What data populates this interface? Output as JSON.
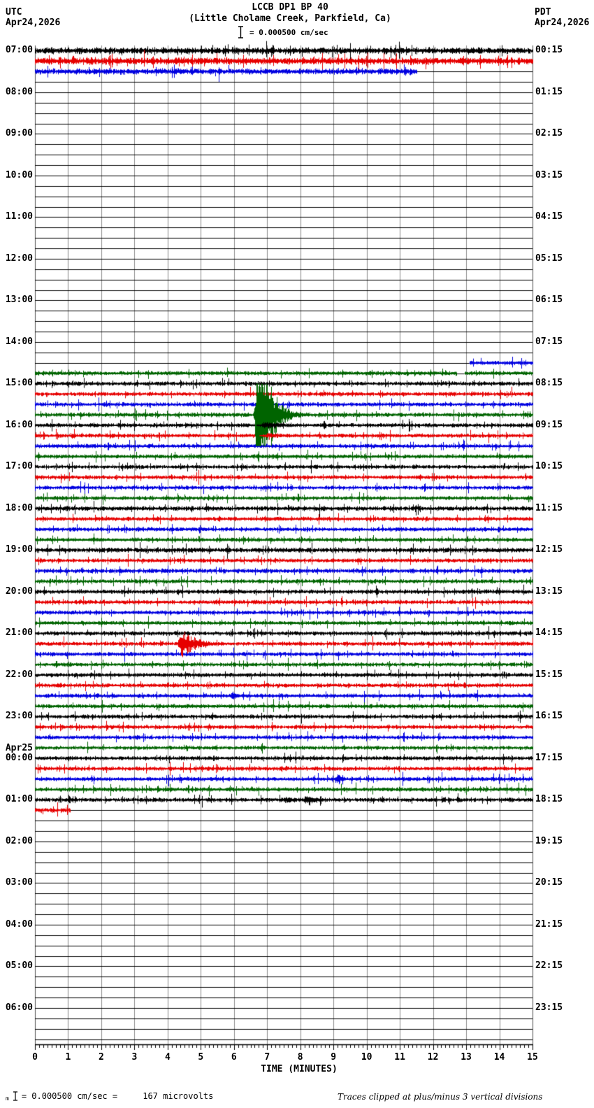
{
  "header": {
    "title": "LCCB DP1 BP 40",
    "subtitle": "(Little Cholame Creek, Parkfield, Ca)",
    "scale_text": "= 0.000500 cm/sec"
  },
  "corner_left": {
    "tz": "UTC",
    "date": "Apr24,2026"
  },
  "corner_right": {
    "tz": "PDT",
    "date": "Apr24,2026"
  },
  "x_axis": {
    "title": "TIME (MINUTES)",
    "tick_labels": [
      "0",
      "1",
      "2",
      "3",
      "4",
      "5",
      "6",
      "7",
      "8",
      "9",
      "10",
      "11",
      "12",
      "13",
      "14",
      "15"
    ]
  },
  "footer": {
    "prefix": "m",
    "scale_equiv": "= 0.000500 cm/sec =     167 microvolts",
    "clip_note": "Traces clipped at plus/minus 3 vertical divisions"
  },
  "colors": {
    "black": "#000000",
    "red": "#e60000",
    "blue": "#0000e0",
    "green": "#006400",
    "grid": "#8a8a8a",
    "edge": "#555555"
  },
  "chart_data": {
    "type": "seismogram-helicorder",
    "station": "LCCB DP1 BP 40",
    "location": "Little Cholame Creek, Parkfield, Ca",
    "timezone_left": "UTC",
    "timezone_right": "PDT",
    "date_start": "Apr24,2026",
    "minutes_per_line": 15,
    "lines_per_hour": 4,
    "trace_color_cycle": [
      "black",
      "red",
      "blue",
      "green"
    ],
    "scale_cm_per_sec": 0.0005,
    "microvolts_equiv": 167,
    "clip_divisions": 3,
    "rows": [
      {
        "utc": "07:00",
        "pdt": "00:15",
        "segs": [
          {
            "c": "black",
            "a": [
              [
                0,
                15
              ]
            ],
            "amp": 4.0
          },
          {
            "c": "red",
            "a": [
              [
                0,
                15
              ]
            ],
            "amp": 4.4
          },
          {
            "c": "blue",
            "a": [
              [
                0,
                11.5
              ]
            ],
            "amp": 3.6
          },
          {
            "c": "green",
            "a": []
          }
        ]
      },
      {
        "utc": "08:00",
        "pdt": "01:15",
        "segs": [
          {
            "c": "black",
            "a": []
          },
          {
            "c": "red",
            "a": []
          },
          {
            "c": "blue",
            "a": []
          },
          {
            "c": "green",
            "a": []
          }
        ]
      },
      {
        "utc": "09:00",
        "pdt": "02:15",
        "segs": [
          {
            "c": "black",
            "a": []
          },
          {
            "c": "red",
            "a": []
          },
          {
            "c": "blue",
            "a": []
          },
          {
            "c": "green",
            "a": []
          }
        ]
      },
      {
        "utc": "10:00",
        "pdt": "03:15",
        "segs": [
          {
            "c": "black",
            "a": []
          },
          {
            "c": "red",
            "a": []
          },
          {
            "c": "blue",
            "a": []
          },
          {
            "c": "green",
            "a": []
          }
        ]
      },
      {
        "utc": "11:00",
        "pdt": "04:15",
        "segs": [
          {
            "c": "black",
            "a": []
          },
          {
            "c": "red",
            "a": []
          },
          {
            "c": "blue",
            "a": []
          },
          {
            "c": "green",
            "a": []
          }
        ]
      },
      {
        "utc": "12:00",
        "pdt": "05:15",
        "segs": [
          {
            "c": "black",
            "a": []
          },
          {
            "c": "red",
            "a": []
          },
          {
            "c": "blue",
            "a": []
          },
          {
            "c": "green",
            "a": []
          }
        ]
      },
      {
        "utc": "13:00",
        "pdt": "06:15",
        "segs": [
          {
            "c": "black",
            "a": []
          },
          {
            "c": "red",
            "a": []
          },
          {
            "c": "blue",
            "a": []
          },
          {
            "c": "green",
            "a": []
          }
        ]
      },
      {
        "utc": "14:00",
        "pdt": "07:15",
        "segs": [
          {
            "c": "black",
            "a": []
          },
          {
            "c": "red",
            "a": []
          },
          {
            "c": "blue",
            "a": [
              [
                13.1,
                15
              ]
            ],
            "amp": 2.6
          },
          {
            "c": "green",
            "a": [
              [
                0,
                12.7
              ],
              [
                12.95,
                15
              ]
            ],
            "amp": 2.6
          }
        ]
      },
      {
        "utc": "15:00",
        "pdt": "08:15",
        "segs": [
          {
            "c": "black",
            "a": [
              [
                0,
                15
              ]
            ],
            "amp": 2.6
          },
          {
            "c": "red",
            "a": [
              [
                0,
                15
              ]
            ],
            "amp": 2.5
          },
          {
            "c": "blue",
            "a": [
              [
                0,
                15
              ]
            ],
            "amp": 2.5
          },
          {
            "c": "green",
            "a": [
              [
                0,
                15
              ]
            ],
            "amp": 2.6
          }
        ]
      },
      {
        "utc": "16:00",
        "pdt": "09:15",
        "segs": [
          {
            "c": "black",
            "a": [
              [
                0,
                15
              ]
            ],
            "amp": 2.5
          },
          {
            "c": "red",
            "a": [
              [
                0,
                15
              ]
            ],
            "amp": 2.5
          },
          {
            "c": "blue",
            "a": [
              [
                0,
                15
              ]
            ],
            "amp": 2.5
          },
          {
            "c": "green",
            "a": [
              [
                0,
                15
              ]
            ],
            "amp": 2.4
          }
        ]
      },
      {
        "utc": "17:00",
        "pdt": "10:15",
        "segs": [
          {
            "c": "black",
            "a": [
              [
                0,
                15
              ]
            ],
            "amp": 2.4
          },
          {
            "c": "red",
            "a": [
              [
                0,
                15
              ]
            ],
            "amp": 2.4
          },
          {
            "c": "blue",
            "a": [
              [
                0,
                15
              ]
            ],
            "amp": 2.4
          },
          {
            "c": "green",
            "a": [
              [
                0,
                15
              ]
            ],
            "amp": 2.4
          }
        ]
      },
      {
        "utc": "18:00",
        "pdt": "11:15",
        "segs": [
          {
            "c": "black",
            "a": [
              [
                0,
                15
              ]
            ],
            "amp": 2.8
          },
          {
            "c": "red",
            "a": [
              [
                0,
                15
              ]
            ],
            "amp": 2.5
          },
          {
            "c": "blue",
            "a": [
              [
                0,
                15
              ]
            ],
            "amp": 2.5
          },
          {
            "c": "green",
            "a": [
              [
                0,
                15
              ]
            ],
            "amp": 2.4
          }
        ]
      },
      {
        "utc": "19:00",
        "pdt": "12:15",
        "segs": [
          {
            "c": "black",
            "a": [
              [
                0,
                15
              ]
            ],
            "amp": 3.0
          },
          {
            "c": "red",
            "a": [
              [
                0,
                15
              ]
            ],
            "amp": 2.5
          },
          {
            "c": "blue",
            "a": [
              [
                0,
                15
              ]
            ],
            "amp": 2.8
          },
          {
            "c": "green",
            "a": [
              [
                0,
                15
              ]
            ],
            "amp": 2.5
          }
        ]
      },
      {
        "utc": "20:00",
        "pdt": "13:15",
        "segs": [
          {
            "c": "black",
            "a": [
              [
                0,
                15
              ]
            ],
            "amp": 2.6
          },
          {
            "c": "red",
            "a": [
              [
                0,
                15
              ]
            ],
            "amp": 2.5
          },
          {
            "c": "blue",
            "a": [
              [
                0,
                15
              ]
            ],
            "amp": 2.5
          },
          {
            "c": "green",
            "a": [
              [
                0,
                15
              ]
            ],
            "amp": 2.4
          }
        ]
      },
      {
        "utc": "21:00",
        "pdt": "14:15",
        "segs": [
          {
            "c": "black",
            "a": [
              [
                0,
                15
              ]
            ],
            "amp": 2.6
          },
          {
            "c": "red",
            "a": [
              [
                0,
                15
              ]
            ],
            "amp": 2.6
          },
          {
            "c": "blue",
            "a": [
              [
                0,
                15
              ]
            ],
            "amp": 2.5
          },
          {
            "c": "green",
            "a": [
              [
                0,
                15
              ]
            ],
            "amp": 2.5
          }
        ]
      },
      {
        "utc": "22:00",
        "pdt": "15:15",
        "segs": [
          {
            "c": "black",
            "a": [
              [
                0,
                15
              ]
            ],
            "amp": 2.5
          },
          {
            "c": "red",
            "a": [
              [
                0,
                15
              ]
            ],
            "amp": 2.5
          },
          {
            "c": "blue",
            "a": [
              [
                0,
                15
              ]
            ],
            "amp": 2.5
          },
          {
            "c": "green",
            "a": [
              [
                0,
                15
              ]
            ],
            "amp": 2.5
          }
        ]
      },
      {
        "utc": "23:00",
        "pdt": "16:15",
        "segs": [
          {
            "c": "black",
            "a": [
              [
                0,
                15
              ]
            ],
            "amp": 2.5
          },
          {
            "c": "red",
            "a": [
              [
                0,
                15
              ]
            ],
            "amp": 2.5
          },
          {
            "c": "blue",
            "a": [
              [
                0,
                15
              ]
            ],
            "amp": 2.4
          },
          {
            "c": "green",
            "a": [
              [
                0,
                15
              ]
            ],
            "amp": 2.4
          }
        ]
      },
      {
        "utc": "00:00",
        "date_label": "Apr25",
        "pdt": "17:15",
        "segs": [
          {
            "c": "black",
            "a": [
              [
                0,
                15
              ]
            ],
            "amp": 2.5
          },
          {
            "c": "red",
            "a": [
              [
                0,
                15
              ]
            ],
            "amp": 2.5
          },
          {
            "c": "blue",
            "a": [
              [
                0,
                15
              ]
            ],
            "amp": 2.5
          },
          {
            "c": "green",
            "a": [
              [
                0,
                15
              ]
            ],
            "amp": 2.5
          }
        ]
      },
      {
        "utc": "01:00",
        "pdt": "18:15",
        "segs": [
          {
            "c": "black",
            "a": [
              [
                0,
                15
              ]
            ],
            "amp": 2.6
          },
          {
            "c": "red",
            "a": [
              [
                0,
                1.05
              ]
            ],
            "amp": 3.2
          },
          {
            "c": "blue",
            "a": []
          },
          {
            "c": "green",
            "a": []
          }
        ]
      },
      {
        "utc": "02:00",
        "pdt": "19:15",
        "segs": [
          {
            "c": "black",
            "a": []
          },
          {
            "c": "red",
            "a": []
          },
          {
            "c": "blue",
            "a": []
          },
          {
            "c": "green",
            "a": []
          }
        ]
      },
      {
        "utc": "03:00",
        "pdt": "20:15",
        "segs": [
          {
            "c": "black",
            "a": []
          },
          {
            "c": "red",
            "a": []
          },
          {
            "c": "blue",
            "a": []
          },
          {
            "c": "green",
            "a": []
          }
        ]
      },
      {
        "utc": "04:00",
        "pdt": "21:15",
        "segs": [
          {
            "c": "black",
            "a": []
          },
          {
            "c": "red",
            "a": []
          },
          {
            "c": "blue",
            "a": []
          },
          {
            "c": "green",
            "a": []
          }
        ]
      },
      {
        "utc": "05:00",
        "pdt": "22:15",
        "segs": [
          {
            "c": "black",
            "a": []
          },
          {
            "c": "red",
            "a": []
          },
          {
            "c": "blue",
            "a": []
          },
          {
            "c": "green",
            "a": []
          }
        ]
      },
      {
        "utc": "06:00",
        "pdt": "23:15",
        "segs": [
          {
            "c": "black",
            "a": []
          },
          {
            "c": "red",
            "a": []
          },
          {
            "c": "blue",
            "a": []
          },
          {
            "c": "green",
            "a": []
          }
        ]
      }
    ],
    "events": [
      {
        "label": "large clipped earthquake (green trace 15:45 UTC)",
        "row": 8,
        "seg": 3,
        "start": 6.55,
        "peak": 6.7,
        "hold": 0.15,
        "tau": 0.35,
        "end": 8.8,
        "amp": 90
      },
      {
        "label": "elevated coda on 16:00 black trace",
        "row": 9,
        "seg": 0,
        "start": 6.5,
        "peak": 6.9,
        "hold": 0.2,
        "tau": 0.6,
        "end": 8.4,
        "amp": 5
      },
      {
        "label": "elevated coda on 16:15 red trace",
        "row": 9,
        "seg": 1,
        "start": 6.6,
        "peak": 7.0,
        "hold": 0.1,
        "tau": 0.5,
        "end": 8.0,
        "amp": 4
      },
      {
        "label": "moderate earthquake (red trace 21:15 UTC)",
        "row": 14,
        "seg": 1,
        "start": 4.25,
        "peak": 4.4,
        "hold": 0.05,
        "tau": 0.45,
        "end": 6.5,
        "amp": 20
      },
      {
        "label": "small event on 01:00 black trace",
        "row": 18,
        "seg": 0,
        "start": 7.3,
        "peak": 7.55,
        "hold": 0.05,
        "tau": 0.3,
        "end": 8.0,
        "amp": 5
      },
      {
        "label": "small event on 01:00 black trace",
        "row": 18,
        "seg": 0,
        "start": 7.9,
        "peak": 8.15,
        "hold": 0.1,
        "tau": 0.35,
        "end": 8.8,
        "amp": 6
      },
      {
        "label": "minor bump on 22:30 blue trace",
        "row": 15,
        "seg": 2,
        "start": 5.8,
        "peak": 5.95,
        "hold": 0.03,
        "tau": 0.12,
        "end": 6.3,
        "amp": 6
      },
      {
        "label": "minor bump on 00:30 blue trace",
        "row": 17,
        "seg": 2,
        "start": 8.95,
        "peak": 9.1,
        "hold": 0.05,
        "tau": 0.15,
        "end": 9.5,
        "amp": 7
      }
    ]
  }
}
